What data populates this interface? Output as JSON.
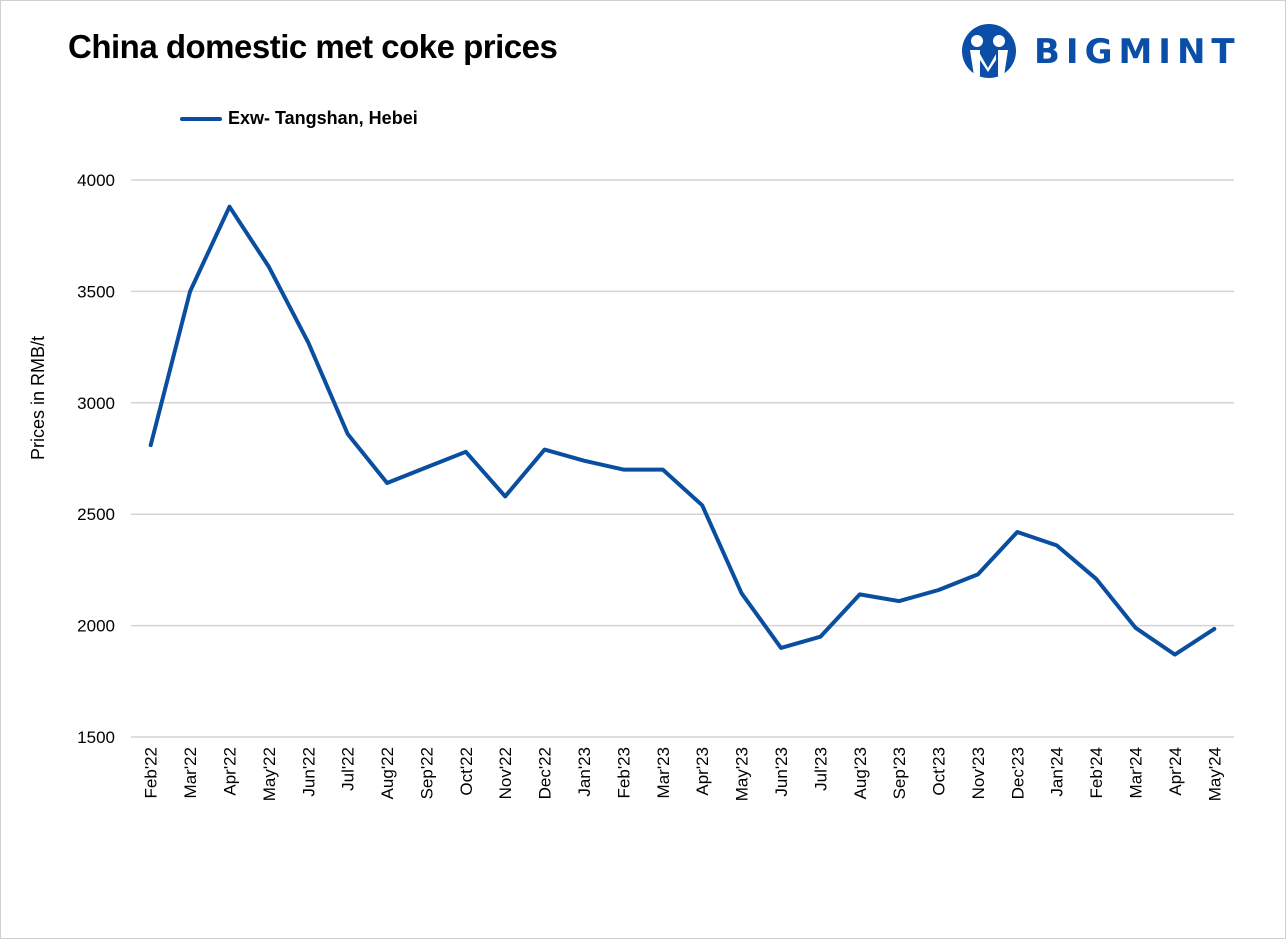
{
  "chart_data": {
    "type": "line",
    "title": "China domestic met coke prices",
    "xlabel": "",
    "ylabel": "Prices in RMB/t",
    "ylim": [
      1500,
      4000
    ],
    "yticks": [
      1500,
      2000,
      2500,
      3000,
      3500,
      4000
    ],
    "grid": true,
    "legend_position": "top-left",
    "categories": [
      "Feb'22",
      "Mar'22",
      "Apr'22",
      "May'22",
      "Jun'22",
      "Jul'22",
      "Aug'22",
      "Sep'22",
      "Oct'22",
      "Nov'22",
      "Dec'22",
      "Jan'23",
      "Feb'23",
      "Mar'23",
      "Apr'23",
      "May'23",
      "Jun'23",
      "Jul'23",
      "Aug'23",
      "Sep'23",
      "Oct'23",
      "Nov'23",
      "Dec'23",
      "Jan'24",
      "Feb'24",
      "Mar'24",
      "Apr'24",
      "May'24"
    ],
    "series": [
      {
        "name": "Exw- Tangshan, Hebei",
        "color": "#0a4ea0",
        "values": [
          2810,
          3500,
          3880,
          3610,
          3270,
          2860,
          2640,
          2710,
          2780,
          2580,
          2790,
          2740,
          2700,
          2700,
          2540,
          2145,
          1900,
          1950,
          2140,
          2110,
          2160,
          2230,
          2420,
          2360,
          2210,
          1990,
          1870,
          1985
        ]
      }
    ]
  },
  "logo": {
    "text": "BIGMINT",
    "color": "#0a4ea8"
  }
}
